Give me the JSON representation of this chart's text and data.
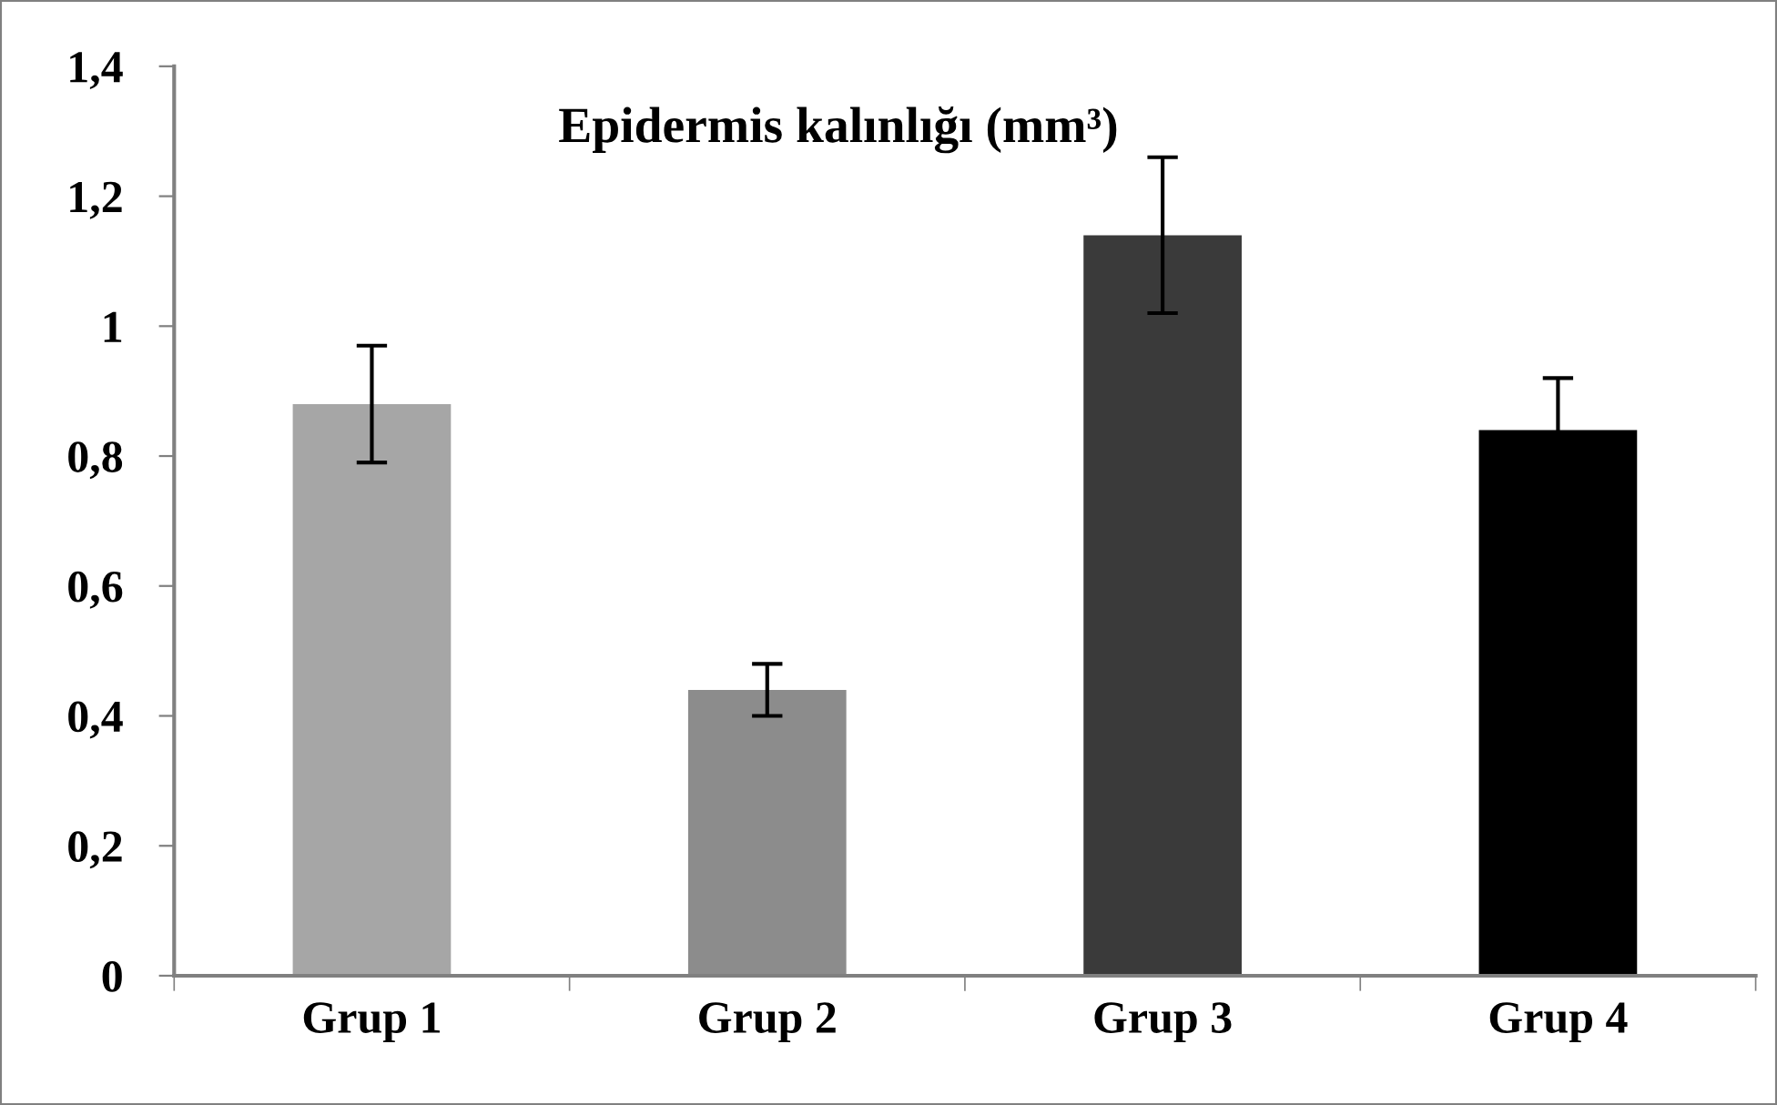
{
  "chart_data": {
    "type": "bar",
    "title": "Epidermis kalınlığı (mm³)",
    "categories": [
      "Grup 1",
      "Grup 2",
      "Grup 3",
      "Grup 4"
    ],
    "values": [
      0.88,
      0.44,
      1.14,
      0.84
    ],
    "errors": [
      0.09,
      0.04,
      0.12,
      0.08
    ],
    "colors": [
      "#a6a6a6",
      "#8c8c8c",
      "#3a3a3a",
      "#000000"
    ],
    "ylim": [
      0,
      1.4
    ],
    "yticks": [
      0,
      {
        "value": 0.2,
        "label": "0,2"
      },
      {
        "value": 0.4,
        "label": "0,4"
      },
      {
        "value": 0.6,
        "label": "0,6"
      },
      {
        "value": 0.8,
        "label": "0,8"
      },
      1,
      {
        "value": 1.2,
        "label": "1,2"
      },
      {
        "value": 1.4,
        "label": "1,4"
      }
    ],
    "grid": false,
    "legend": false
  }
}
